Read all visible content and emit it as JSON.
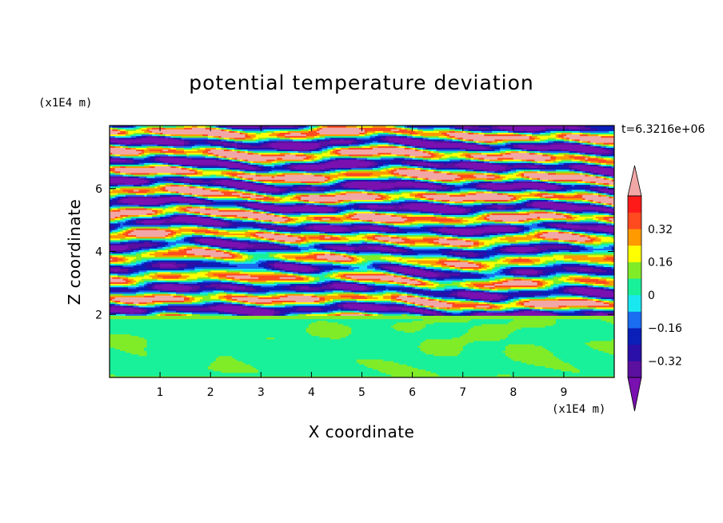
{
  "chart_data": {
    "type": "heatmap",
    "title": "potential temperature deviation",
    "xlabel": "X coordinate",
    "ylabel": "Z coordinate",
    "x_unit": "(x1E4 m)",
    "y_unit": "(x1E4 m)",
    "time_label": "t=6.3216e+06",
    "xlim": [
      0,
      10
    ],
    "ylim": [
      0,
      8
    ],
    "x_ticks": [
      1,
      2,
      3,
      4,
      5,
      6,
      7,
      8,
      9
    ],
    "y_ticks": [
      2,
      4,
      6
    ],
    "x_tick_labels": [
      "1",
      "2",
      "3",
      "4",
      "5",
      "6",
      "7",
      "8",
      "9"
    ],
    "y_tick_labels": [
      "2",
      "4",
      "6"
    ],
    "colorbar": {
      "levels": [
        -0.4,
        -0.32,
        -0.24,
        -0.16,
        -0.08,
        0,
        0.08,
        0.16,
        0.24,
        0.32,
        0.4
      ],
      "colors": [
        "#5b0f9e",
        "#2a0fa8",
        "#0a1fb8",
        "#1a6cf0",
        "#19e8f0",
        "#19f09a",
        "#80ec28",
        "#ffff00",
        "#ff9a00",
        "#ff4a20",
        "#ff1a1a",
        "#f2a7a7"
      ],
      "under_color": "#7a10b0",
      "over_color": "#f2a7a7",
      "tick_values": [
        0.32,
        0.16,
        0,
        -0.16,
        -0.32
      ],
      "tick_labels": [
        "0.32",
        "0.16",
        "0",
        "−0.16",
        "−0.32"
      ]
    },
    "field_description_regions": [
      {
        "z_range": [
          0,
          2
        ],
        "pattern": "weak",
        "dominant_values": [
          0,
          0.08
        ]
      },
      {
        "z_range": [
          2,
          8
        ],
        "pattern": "layered",
        "dominant_values": [
          -0.4,
          0.4
        ]
      }
    ]
  }
}
